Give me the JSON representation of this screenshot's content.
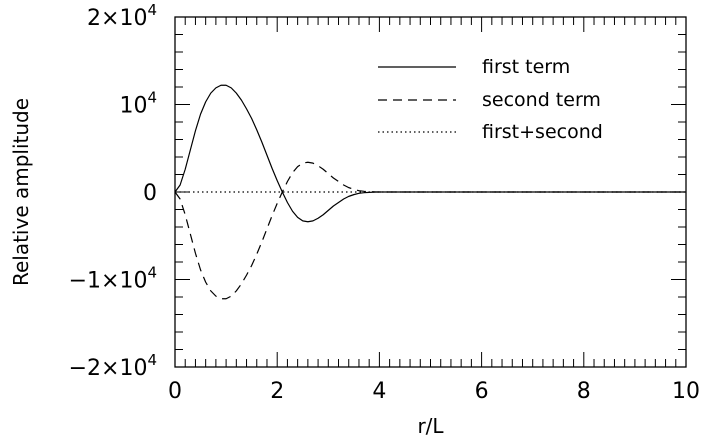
{
  "chart_data": {
    "type": "line",
    "xlabel": "r/L",
    "ylabel": "Relative amplitude",
    "xlim": [
      0,
      10
    ],
    "ylim": [
      -20000,
      20000
    ],
    "x_major_ticks": [
      0,
      2,
      4,
      6,
      8,
      10
    ],
    "x_tick_labels": [
      "0",
      "2",
      "4",
      "6",
      "8",
      "10"
    ],
    "y_major_ticks": [
      -20000,
      -10000,
      0,
      10000,
      20000
    ],
    "y_tick_labels": [
      {
        "value": -20000,
        "prefix": "−2×10",
        "exp": "4"
      },
      {
        "value": -10000,
        "prefix": "−1×10",
        "exp": "4"
      },
      {
        "value": 0,
        "prefix": "0",
        "exp": ""
      },
      {
        "value": 10000,
        "prefix": "10",
        "exp": "4"
      },
      {
        "value": 20000,
        "prefix": "2×10",
        "exp": "4"
      }
    ],
    "grid": false,
    "legend_position": "top-right",
    "series": [
      {
        "name": "first term",
        "line_style": "solid",
        "x": [
          0,
          0.1,
          0.2,
          0.3,
          0.4,
          0.5,
          0.6,
          0.7,
          0.8,
          0.9,
          1.0,
          1.1,
          1.2,
          1.3,
          1.4,
          1.5,
          1.6,
          1.7,
          1.8,
          1.9,
          2.0,
          2.1,
          2.2,
          2.3,
          2.4,
          2.5,
          2.6,
          2.7,
          2.8,
          2.9,
          3.0,
          3.1,
          3.2,
          3.3,
          3.4,
          3.5,
          3.6,
          3.7,
          3.8,
          3.9,
          4.0,
          4.2,
          4.5,
          5.0,
          6.0,
          7.0,
          8.0,
          9.0,
          10.0
        ],
        "y": [
          0,
          800,
          2600,
          4800,
          7000,
          8900,
          10300,
          11300,
          11900,
          12200,
          12200,
          11900,
          11300,
          10500,
          9500,
          8400,
          7100,
          5700,
          4200,
          2700,
          1300,
          0,
          -1200,
          -2200,
          -2900,
          -3300,
          -3400,
          -3300,
          -3000,
          -2600,
          -2100,
          -1600,
          -1200,
          -800,
          -500,
          -300,
          -150,
          -80,
          -40,
          -20,
          0,
          0,
          0,
          0,
          0,
          0,
          0,
          0,
          0
        ]
      },
      {
        "name": "second term",
        "line_style": "dashed",
        "x": [
          0,
          0.1,
          0.2,
          0.3,
          0.4,
          0.5,
          0.6,
          0.7,
          0.8,
          0.9,
          1.0,
          1.1,
          1.2,
          1.3,
          1.4,
          1.5,
          1.6,
          1.7,
          1.8,
          1.9,
          2.0,
          2.1,
          2.2,
          2.3,
          2.4,
          2.5,
          2.6,
          2.7,
          2.8,
          2.9,
          3.0,
          3.1,
          3.2,
          3.3,
          3.4,
          3.5,
          3.6,
          3.7,
          3.8,
          3.9,
          4.0,
          4.2,
          4.5,
          5.0,
          6.0,
          7.0,
          8.0,
          9.0,
          10.0
        ],
        "y": [
          0,
          -800,
          -2600,
          -4800,
          -7000,
          -8900,
          -10300,
          -11300,
          -11900,
          -12200,
          -12200,
          -11900,
          -11300,
          -10500,
          -9500,
          -8400,
          -7100,
          -5700,
          -4200,
          -2700,
          -1300,
          0,
          1200,
          2200,
          2900,
          3300,
          3400,
          3300,
          3000,
          2600,
          2100,
          1600,
          1200,
          800,
          500,
          300,
          150,
          80,
          40,
          20,
          0,
          0,
          0,
          0,
          0,
          0,
          0,
          0,
          0
        ]
      },
      {
        "name": "first+second",
        "line_style": "dotted",
        "x": [
          0,
          10
        ],
        "y": [
          0,
          0
        ]
      }
    ]
  }
}
